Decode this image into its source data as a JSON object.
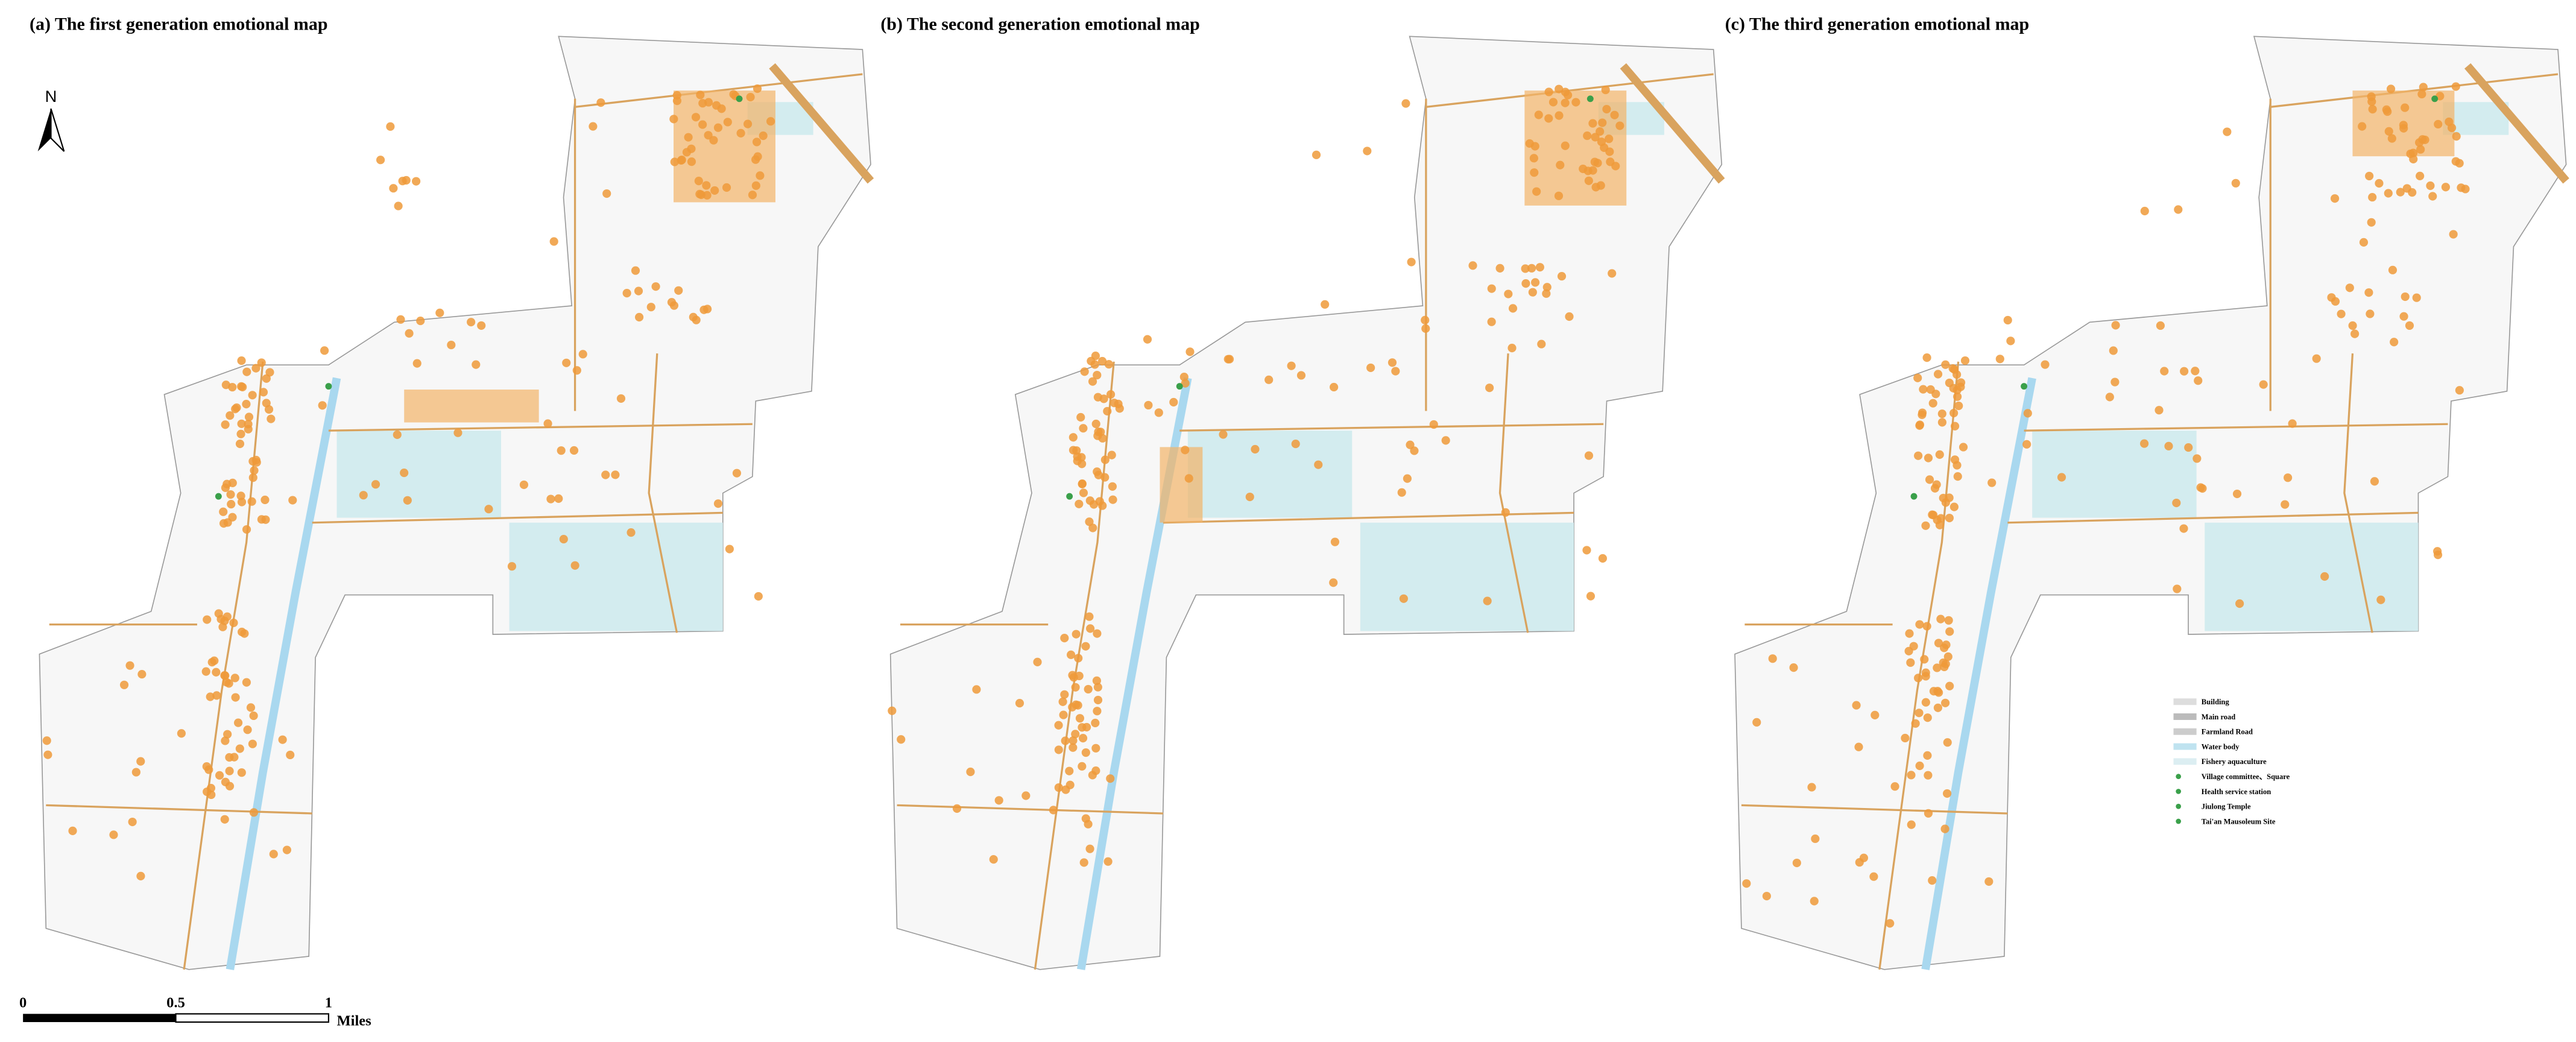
{
  "panels": [
    {
      "title": "(a)  The first generation emotional map"
    },
    {
      "title": "(b)  The second generation emotional map"
    },
    {
      "title": "(c)  The third generation emotional map"
    }
  ],
  "north": "N",
  "legend": {
    "items": [
      "Building",
      "Main road",
      "Farmland Road",
      "Water body",
      "Fishery aquaculture",
      "Village committee、Square",
      "Health service station",
      "Jiulong Temple",
      "Tai'an Mausoleum Site"
    ]
  },
  "scale_bar": {
    "labels": [
      "0",
      "0.5",
      "1"
    ],
    "unit": "Miles"
  }
}
